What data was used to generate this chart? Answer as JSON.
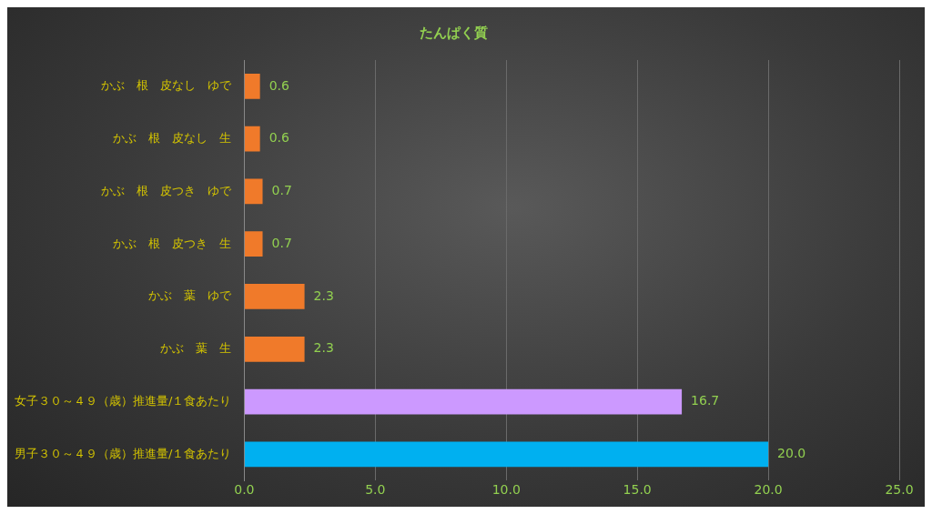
{
  "chart_data": {
    "type": "bar",
    "orientation": "horizontal",
    "title": "たんぱく質",
    "categories": [
      "かぶ　根　皮なし　ゆで",
      "かぶ　根　皮なし　生",
      "かぶ　根　皮つき　ゆで",
      "かぶ　根　皮つき　生",
      "かぶ　葉　ゆで",
      "かぶ　葉　生",
      "女子３０～４９（歳）推進量/１食あたり",
      "男子３０～４９（歳）推進量/１食あたり"
    ],
    "values": [
      0.6,
      0.6,
      0.7,
      0.7,
      2.3,
      2.3,
      16.7,
      20.0
    ],
    "colors": [
      "#f07a2a",
      "#f07a2a",
      "#f07a2a",
      "#f07a2a",
      "#f07a2a",
      "#f07a2a",
      "#cc99ff",
      "#00b0f0"
    ],
    "value_labels": [
      "0.6",
      "0.6",
      "0.7",
      "0.7",
      "2.3",
      "2.3",
      "16.7",
      "20.0"
    ],
    "xlim": [
      0,
      25
    ],
    "xticks": [
      {
        "value": 0,
        "label": "0.0"
      },
      {
        "value": 5,
        "label": "5.0"
      },
      {
        "value": 10,
        "label": "10.0"
      },
      {
        "value": 15,
        "label": "15.0"
      },
      {
        "value": 20,
        "label": "20.0"
      },
      {
        "value": 25,
        "label": "25.0"
      }
    ],
    "grid": "x",
    "legend": false
  }
}
